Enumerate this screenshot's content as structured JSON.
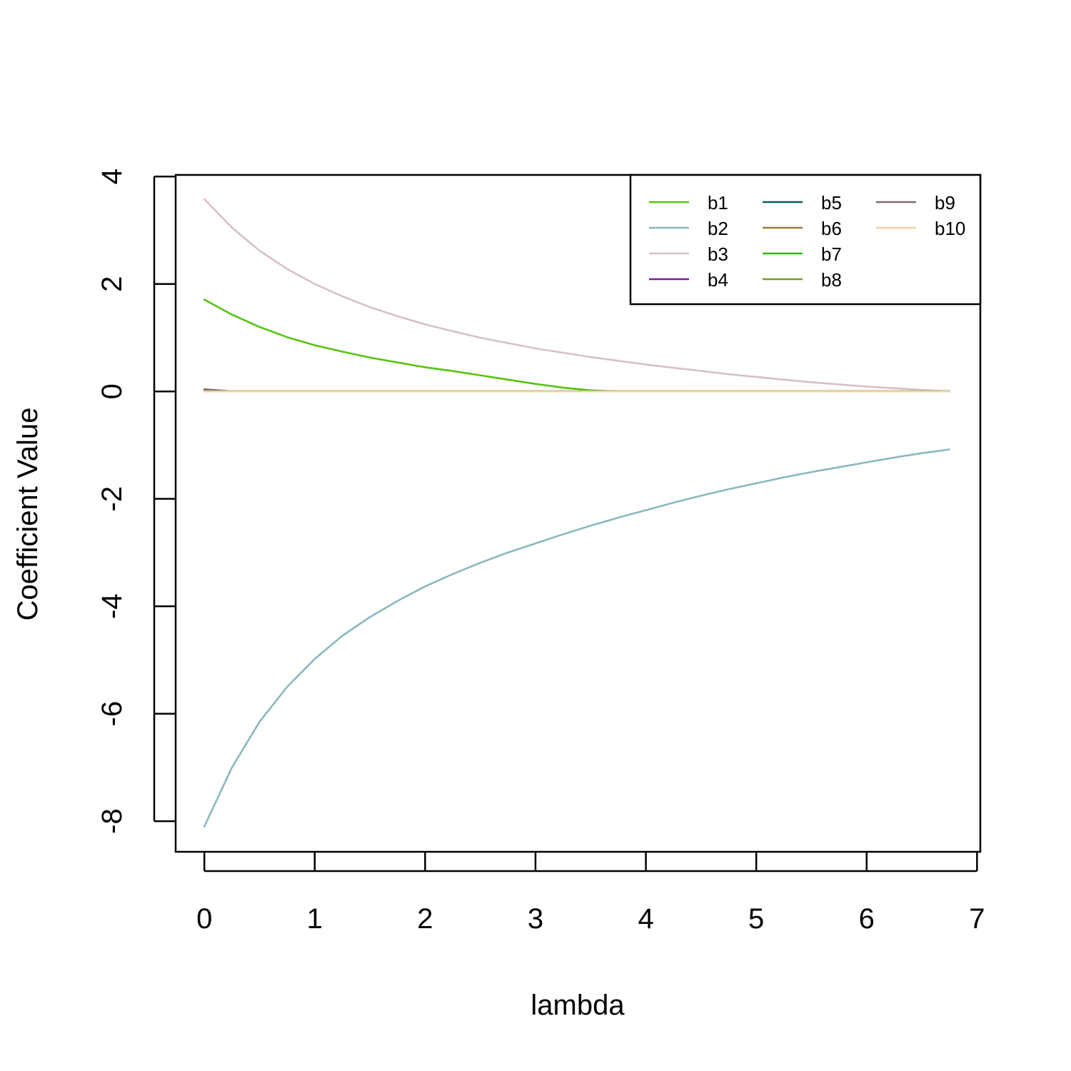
{
  "chart_data": {
    "type": "line",
    "title": "",
    "xlabel": "lambda",
    "ylabel": "Coefficient Value",
    "xlim": [
      -0.26,
      7.03
    ],
    "ylim": [
      -8.57,
      4.03
    ],
    "x_ticks": [
      0,
      1,
      2,
      3,
      4,
      5,
      6,
      7
    ],
    "y_ticks": [
      -8,
      -6,
      -4,
      -2,
      0,
      2,
      4
    ],
    "grid": false,
    "legend_position": "top-right",
    "x": [
      0,
      0.25,
      0.5,
      0.75,
      1,
      1.25,
      1.5,
      1.75,
      2,
      2.25,
      2.5,
      2.75,
      3,
      3.25,
      3.5,
      3.75,
      4,
      4.25,
      4.5,
      4.75,
      5,
      5.25,
      5.5,
      5.75,
      6,
      6.25,
      6.5,
      6.75
    ],
    "series": [
      {
        "name": "b1",
        "color": "#55c40f",
        "values": [
          1.71,
          1.43,
          1.2,
          1.01,
          0.86,
          0.74,
          0.63,
          0.54,
          0.45,
          0.38,
          0.3,
          0.22,
          0.14,
          0.07,
          0.02,
          0,
          0,
          0,
          0,
          0,
          0,
          0,
          0,
          0,
          0,
          0,
          0,
          0
        ]
      },
      {
        "name": "b2",
        "color": "#8ab8bf",
        "values": [
          -8.1,
          -7.0,
          -6.15,
          -5.5,
          -4.98,
          -4.55,
          -4.2,
          -3.9,
          -3.63,
          -3.4,
          -3.19,
          -3.0,
          -2.83,
          -2.66,
          -2.5,
          -2.35,
          -2.21,
          -2.07,
          -1.94,
          -1.82,
          -1.71,
          -1.6,
          -1.5,
          -1.41,
          -1.32,
          -1.23,
          -1.15,
          -1.08
        ]
      },
      {
        "name": "b3",
        "color": "#d6c0ca",
        "values": [
          3.58,
          3.05,
          2.62,
          2.28,
          2.0,
          1.77,
          1.57,
          1.4,
          1.25,
          1.12,
          1.0,
          0.9,
          0.8,
          0.72,
          0.64,
          0.57,
          0.5,
          0.44,
          0.38,
          0.32,
          0.27,
          0.22,
          0.17,
          0.13,
          0.09,
          0.06,
          0.03,
          0.0
        ]
      },
      {
        "name": "b4",
        "color": "#7e1e9c",
        "values": [
          0.02,
          0.0,
          0,
          0,
          0,
          0,
          0,
          0,
          0,
          0,
          0,
          0,
          0,
          0,
          0,
          0,
          0,
          0,
          0,
          0,
          0,
          0,
          0,
          0,
          0,
          0,
          0,
          0
        ]
      },
      {
        "name": "b5",
        "color": "#0b5e55",
        "values": [
          0.01,
          0.0,
          0,
          0,
          0,
          0,
          0,
          0,
          0,
          0,
          0,
          0,
          0,
          0,
          0,
          0,
          0,
          0,
          0,
          0,
          0,
          0,
          0,
          0,
          0,
          0,
          0,
          0
        ]
      },
      {
        "name": "b6",
        "color": "#9e7b3a",
        "values": [
          0.02,
          0.0,
          0,
          0,
          0,
          0,
          0,
          0,
          0,
          0,
          0,
          0,
          0,
          0,
          0,
          0,
          0,
          0,
          0,
          0,
          0,
          0,
          0,
          0,
          0,
          0,
          0,
          0
        ]
      },
      {
        "name": "b7",
        "color": "#32b40f",
        "values": [
          0.01,
          0.0,
          0,
          0,
          0,
          0,
          0,
          0,
          0,
          0,
          0,
          0,
          0,
          0,
          0,
          0,
          0,
          0,
          0,
          0,
          0,
          0,
          0,
          0,
          0,
          0,
          0,
          0
        ]
      },
      {
        "name": "b8",
        "color": "#7a9a1c",
        "values": [
          0.02,
          0.0,
          0,
          0,
          0,
          0,
          0,
          0,
          0,
          0,
          0,
          0,
          0,
          0,
          0,
          0,
          0,
          0,
          0,
          0,
          0,
          0,
          0,
          0,
          0,
          0,
          0,
          0
        ]
      },
      {
        "name": "b9",
        "color": "#7a6c78",
        "values": [
          0.04,
          0.0,
          0,
          0,
          0,
          0,
          0,
          0,
          0,
          0,
          0,
          0,
          0,
          0,
          0,
          0,
          0,
          0,
          0,
          0,
          0,
          0,
          0,
          0,
          0,
          0,
          0,
          0
        ]
      },
      {
        "name": "b10",
        "color": "#efd3a0",
        "values": [
          0.0,
          0.0,
          0,
          0,
          0,
          0,
          0,
          0,
          0,
          0,
          0,
          0,
          0,
          0,
          0,
          0,
          0,
          0,
          0,
          0,
          0,
          0,
          0,
          0,
          0,
          0,
          0,
          0
        ]
      }
    ]
  }
}
